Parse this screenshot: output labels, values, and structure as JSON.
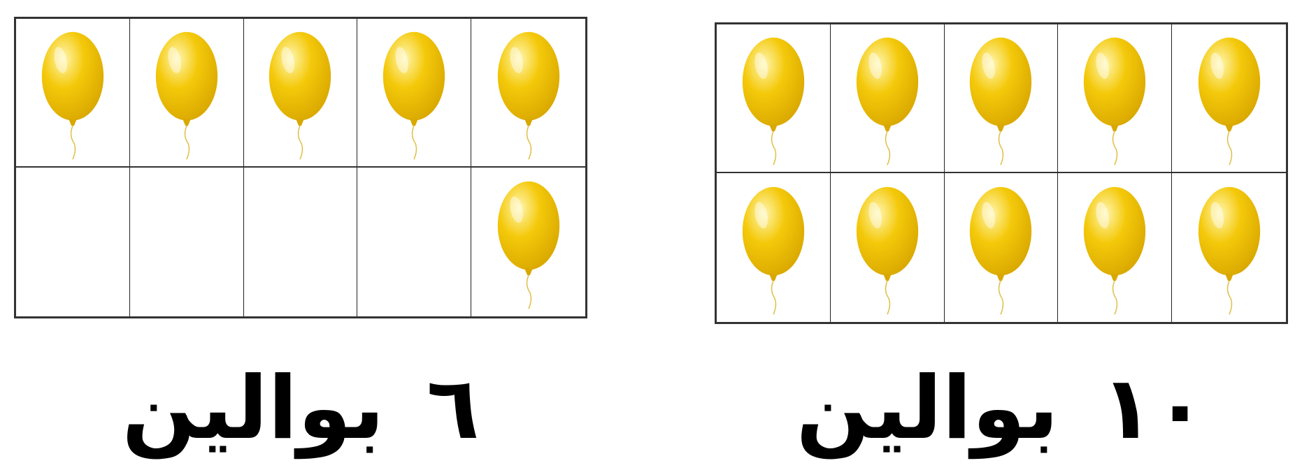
{
  "colors": {
    "balloon_fill": "#f4c90a",
    "balloon_highlight": "#fff6b0",
    "balloon_shade": "#d9a800",
    "grid_line": "#333333"
  },
  "frames": [
    {
      "id": "left",
      "filled_cells": [
        true,
        true,
        true,
        true,
        true,
        false,
        false,
        false,
        false,
        true
      ],
      "caption": {
        "number": "٦",
        "word": "بوالين"
      }
    },
    {
      "id": "right",
      "filled_cells": [
        true,
        true,
        true,
        true,
        true,
        true,
        true,
        true,
        true,
        true
      ],
      "caption": {
        "number": "١٠",
        "word": "بوالين"
      }
    }
  ],
  "icon": "yellow-balloon-icon"
}
